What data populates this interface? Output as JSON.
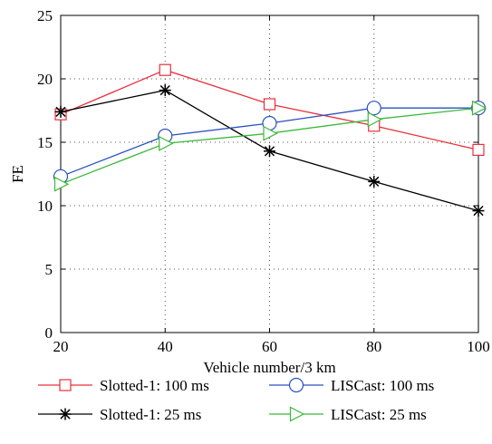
{
  "chart_data": {
    "type": "line",
    "xlabel": "Vehicle number/3 km",
    "ylabel": "FE",
    "xlim": [
      20,
      100
    ],
    "ylim": [
      0,
      25
    ],
    "x_ticks": [
      20,
      40,
      60,
      80,
      100
    ],
    "y_ticks": [
      0,
      5,
      10,
      15,
      20,
      25
    ],
    "grid": true,
    "grid_style": "dotted",
    "legend_position": "bottom",
    "x": [
      20,
      40,
      60,
      80,
      100
    ],
    "series": [
      {
        "name": "Slotted-1: 100 ms",
        "color": "#e8303a",
        "marker": "square",
        "values": [
          17.2,
          20.7,
          18.0,
          16.3,
          14.4
        ]
      },
      {
        "name": "Slotted-1: 25 ms",
        "color": "#000000",
        "marker": "star",
        "values": [
          17.4,
          19.1,
          14.3,
          11.9,
          9.6
        ]
      },
      {
        "name": "LISCast: 100 ms",
        "color": "#2a52be",
        "marker": "circle",
        "values": [
          12.3,
          15.5,
          16.5,
          17.7,
          17.7
        ]
      },
      {
        "name": "LISCast: 25 ms",
        "color": "#3cb83c",
        "marker": "triangle-right",
        "values": [
          11.7,
          14.9,
          15.7,
          16.8,
          17.7
        ]
      }
    ]
  }
}
